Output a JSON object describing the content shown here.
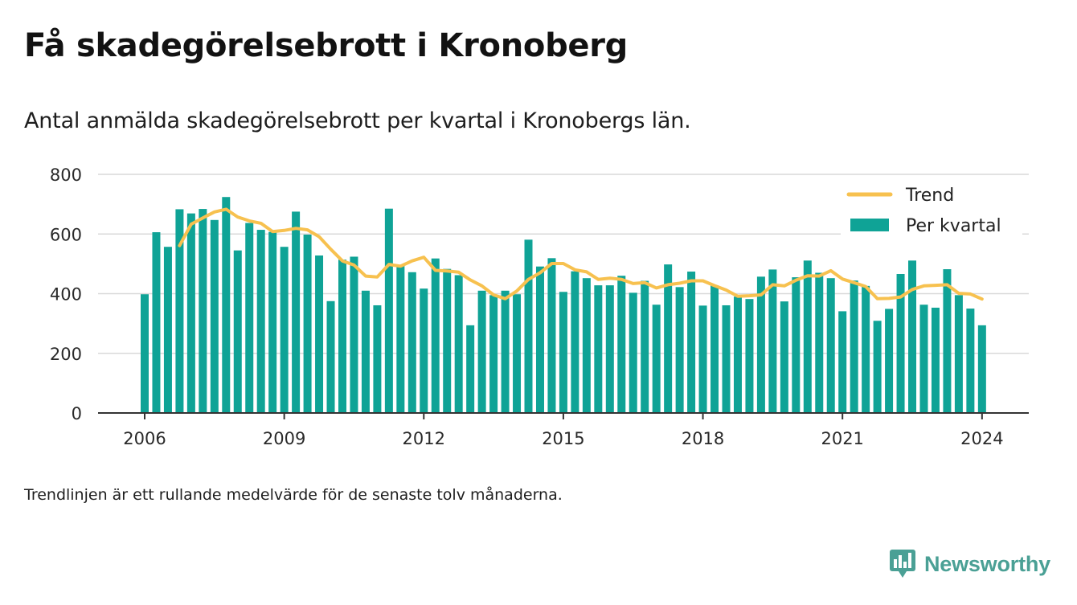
{
  "header": {
    "title": "Få skadegörelsebrott i Kronoberg",
    "subtitle": "Antal anmälda skadegörelsebrott per kvartal i Kronobergs län."
  },
  "footer": {
    "note": "Trendlinjen är ett rullande medelvärde för de senaste tolv månaderna.",
    "brand": "Newsworthy"
  },
  "colors": {
    "bars": "#0fa396",
    "trend": "#f7c14f",
    "grid": "#d9d9d9",
    "axis": "#333333",
    "brand": "#4aa095"
  },
  "chart_data": {
    "type": "bar",
    "title": "Få skadegörelsebrott i Kronoberg",
    "subtitle": "Antal anmälda skadegörelsebrott per kvartal i Kronobergs län.",
    "x_ticks": [
      "2006",
      "2009",
      "2012",
      "2015",
      "2018",
      "2021",
      "2024"
    ],
    "y_ticks": [
      "0",
      "200",
      "400",
      "600",
      "800"
    ],
    "ylim": [
      0,
      800
    ],
    "grid": true,
    "legend_position": "top-right",
    "start_year": 2006,
    "series": [
      {
        "name": "Per kvartal",
        "type": "bar",
        "values": [
          398,
          606,
          557,
          683,
          669,
          684,
          647,
          724,
          545,
          637,
          614,
          607,
          557,
          675,
          598,
          528,
          375,
          514,
          524,
          410,
          361,
          685,
          495,
          472,
          417,
          518,
          483,
          462,
          294,
          410,
          395,
          410,
          398,
          581,
          491,
          519,
          406,
          475,
          452,
          428,
          428,
          460,
          403,
          443,
          363,
          498,
          422,
          474,
          360,
          428,
          361,
          390,
          382,
          457,
          481,
          374,
          455,
          511,
          470,
          452,
          341,
          444,
          426,
          309,
          349,
          466,
          511,
          363,
          353,
          482,
          395,
          350,
          294
        ]
      },
      {
        "name": "Trend",
        "type": "line",
        "start_index": 3,
        "values": [
          561,
          633,
          654,
          674,
          683,
          657,
          644,
          636,
          608,
          612,
          619,
          614,
          591,
          549,
          510,
          496,
          459,
          456,
          498,
          492,
          510,
          522,
          478,
          476,
          472,
          446,
          426,
          396,
          383,
          409,
          448,
          470,
          501,
          501,
          480,
          473,
          448,
          452,
          448,
          434,
          437,
          419,
          430,
          435,
          443,
          443,
          427,
          412,
          391,
          393,
          396,
          430,
          426,
          445,
          460,
          459,
          477,
          449,
          437,
          424,
          383,
          384,
          389,
          414,
          426,
          428,
          430,
          401,
          399,
          382
        ]
      }
    ]
  }
}
